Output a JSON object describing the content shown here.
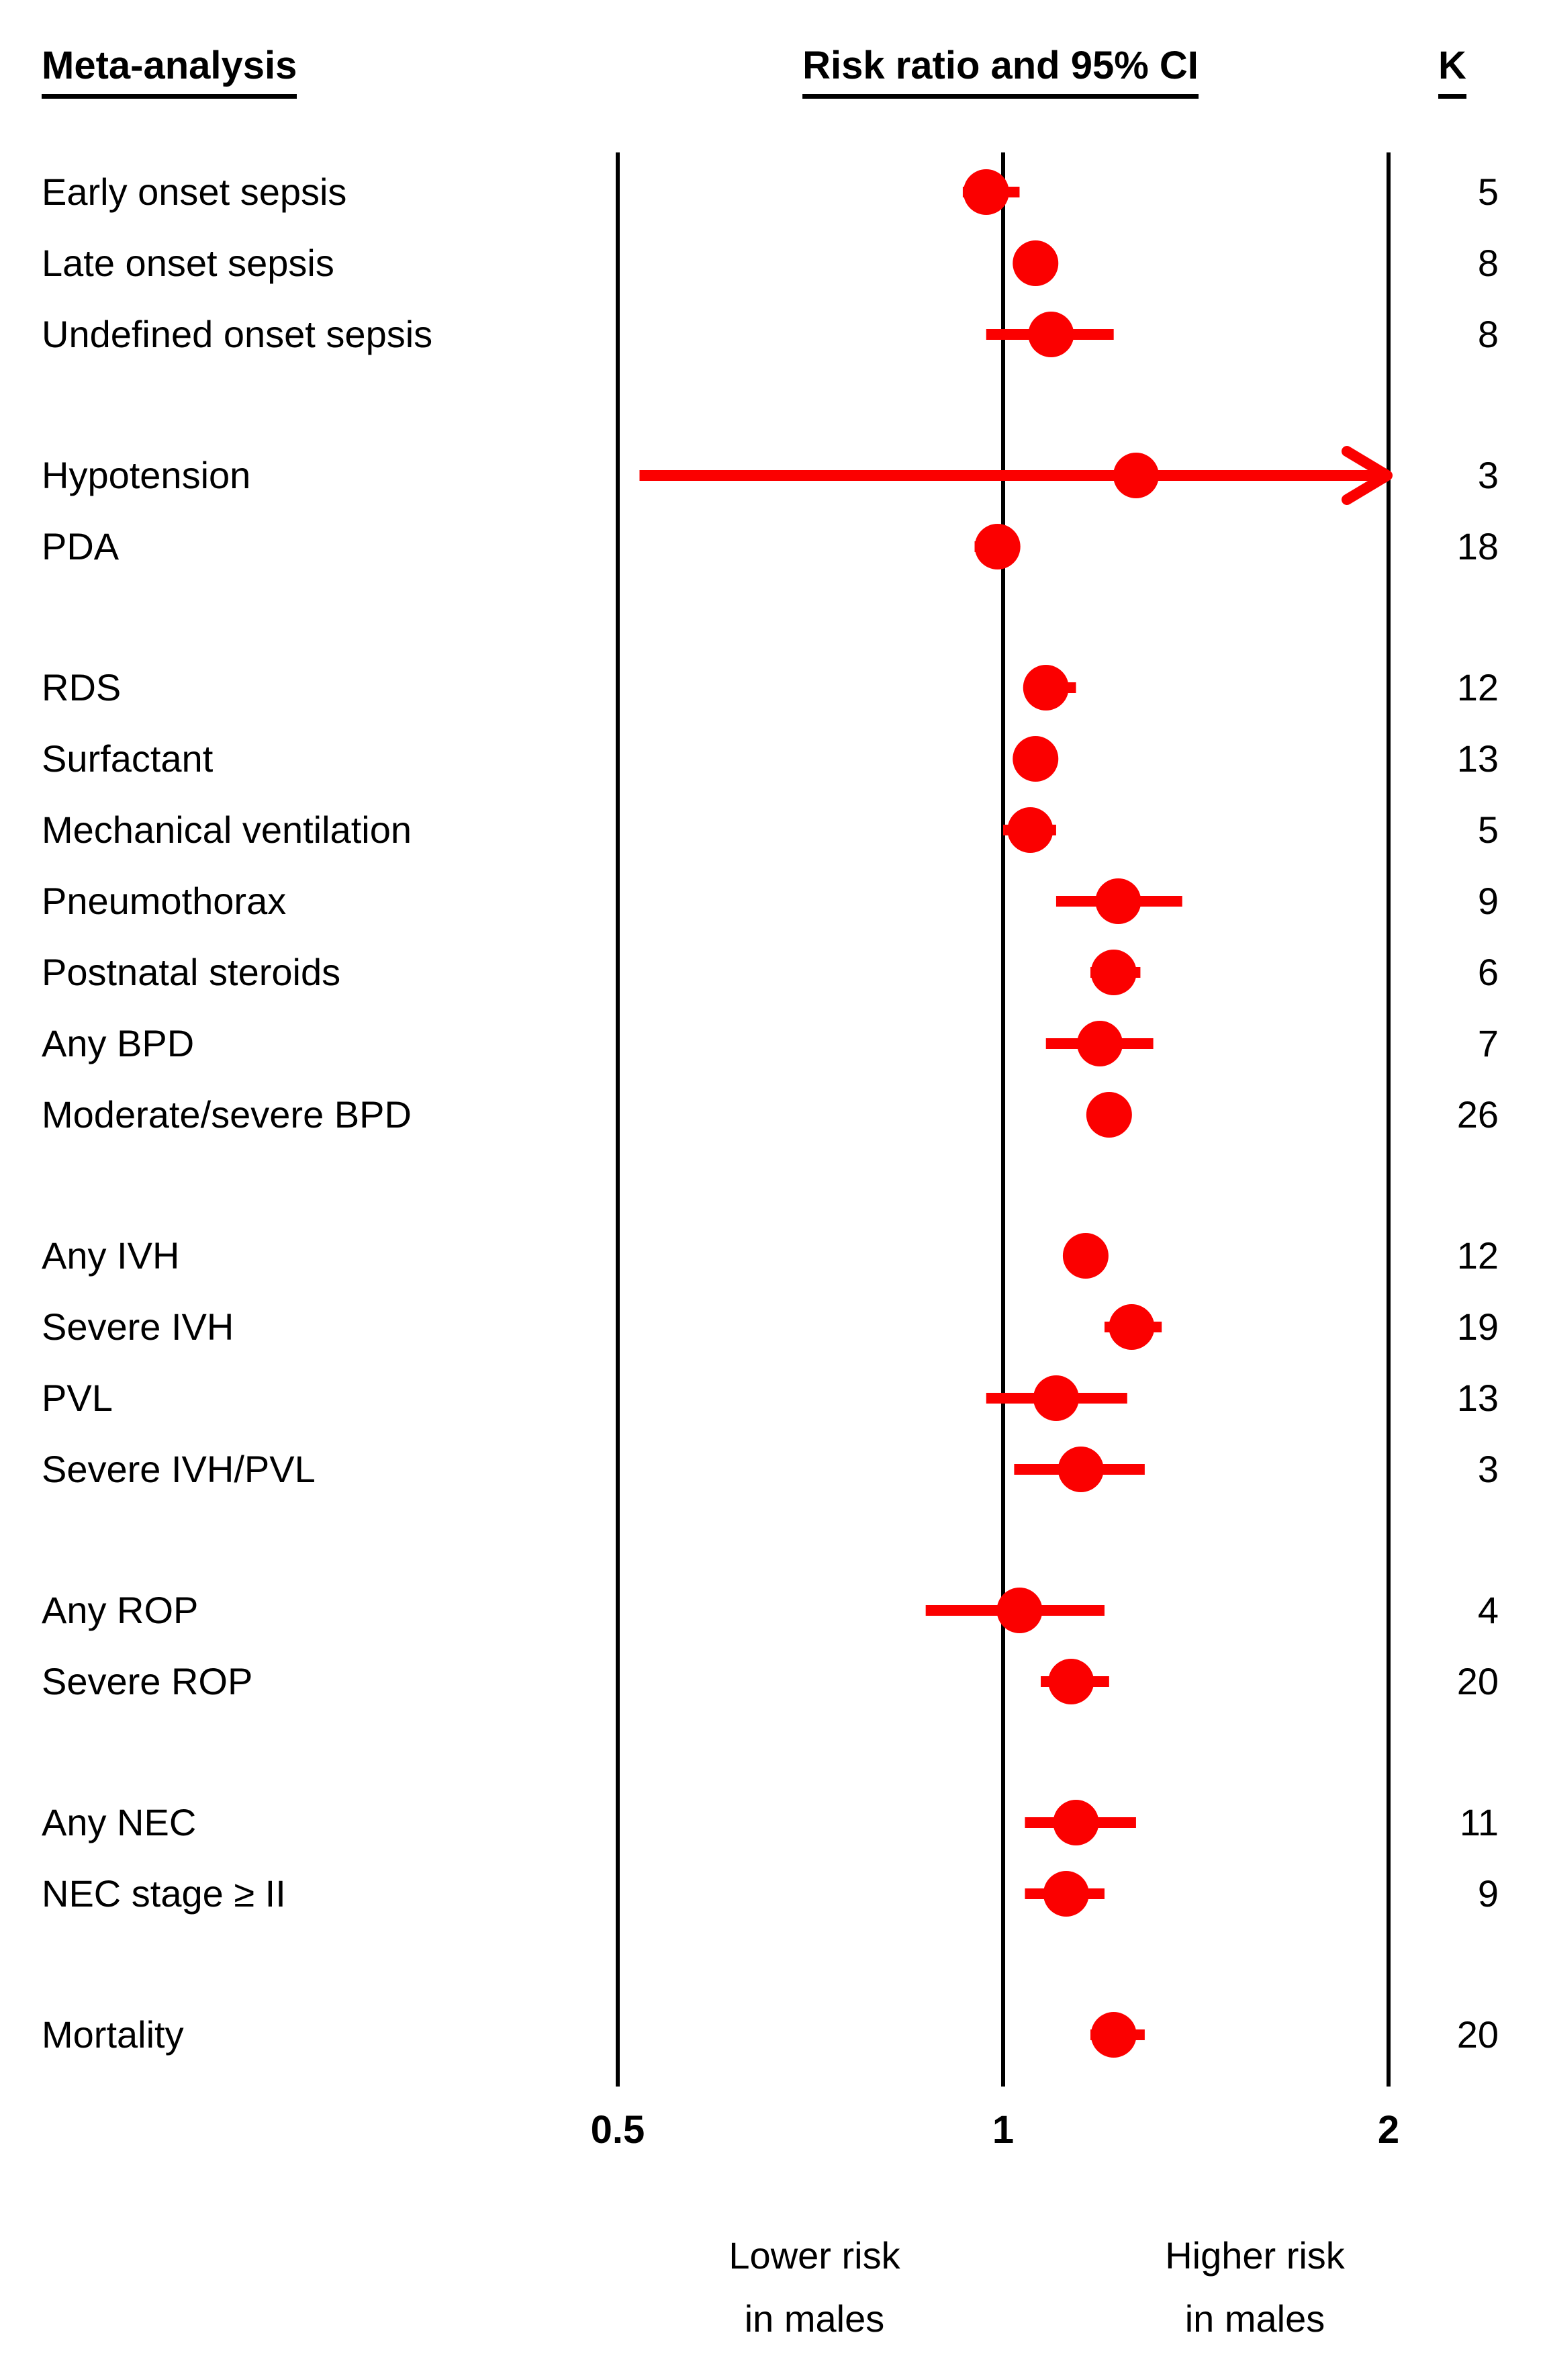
{
  "header": {
    "col_outcome": "Meta-analysis",
    "col_plot": "Risk ratio and 95% CI",
    "col_k": "K"
  },
  "axis": {
    "ticks": [
      "0.5",
      "1",
      "2"
    ],
    "tick_values": [
      0.5,
      1,
      2
    ],
    "scale": "log2"
  },
  "footer": {
    "lower": [
      "Lower risk",
      "in males"
    ],
    "higher": [
      "Higher risk",
      "in males"
    ]
  },
  "colors": {
    "marker": "#FB0000",
    "axis": "#000000",
    "text": "#000000"
  },
  "chart_data": {
    "type": "forest",
    "xlabel": "Risk ratio and 95% CI",
    "xlim": [
      0.5,
      2
    ],
    "x_scale": "log",
    "reference_line": 1,
    "groups": [
      {
        "rows": [
          {
            "label": "Early onset sepsis",
            "rr": 0.97,
            "ci_low": 0.93,
            "ci_high": 1.03,
            "k": 5
          },
          {
            "label": "Late onset sepsis",
            "rr": 1.06,
            "ci_low": 1.02,
            "ci_high": 1.1,
            "k": 8
          },
          {
            "label": "Undefined onset sepsis",
            "rr": 1.09,
            "ci_low": 0.97,
            "ci_high": 1.22,
            "k": 8
          }
        ]
      },
      {
        "rows": [
          {
            "label": "Hypotension",
            "rr": 1.27,
            "ci_low": 0.52,
            "ci_high": 2.0,
            "ci_high_arrow": true,
            "k": 3
          },
          {
            "label": "PDA",
            "rr": 0.99,
            "ci_low": 0.95,
            "ci_high": 1.02,
            "k": 18
          }
        ]
      },
      {
        "rows": [
          {
            "label": "RDS",
            "rr": 1.08,
            "ci_low": 1.04,
            "ci_high": 1.14,
            "k": 12
          },
          {
            "label": "Surfactant",
            "rr": 1.06,
            "ci_low": 1.02,
            "ci_high": 1.09,
            "k": 13
          },
          {
            "label": "Mechanical ventilation",
            "rr": 1.05,
            "ci_low": 1.0,
            "ci_high": 1.1,
            "k": 5
          },
          {
            "label": "Pneumothorax",
            "rr": 1.23,
            "ci_low": 1.1,
            "ci_high": 1.38,
            "k": 9
          },
          {
            "label": "Postnatal steroids",
            "rr": 1.22,
            "ci_low": 1.17,
            "ci_high": 1.28,
            "k": 6
          },
          {
            "label": "Any BPD",
            "rr": 1.19,
            "ci_low": 1.08,
            "ci_high": 1.31,
            "k": 7
          },
          {
            "label": "Moderate/severe BPD",
            "rr": 1.21,
            "ci_low": 1.17,
            "ci_high": 1.25,
            "k": 26
          }
        ]
      },
      {
        "rows": [
          {
            "label": "Any IVH",
            "rr": 1.16,
            "ci_low": 1.12,
            "ci_high": 1.2,
            "k": 12
          },
          {
            "label": "Severe IVH",
            "rr": 1.26,
            "ci_low": 1.2,
            "ci_high": 1.33,
            "k": 19
          },
          {
            "label": "PVL",
            "rr": 1.1,
            "ci_low": 0.97,
            "ci_high": 1.25,
            "k": 13
          },
          {
            "label": "Severe IVH/PVL",
            "rr": 1.15,
            "ci_low": 1.02,
            "ci_high": 1.29,
            "k": 3
          }
        ]
      },
      {
        "rows": [
          {
            "label": "Any ROP",
            "rr": 1.03,
            "ci_low": 0.87,
            "ci_high": 1.2,
            "k": 4
          },
          {
            "label": "Severe ROP",
            "rr": 1.13,
            "ci_low": 1.07,
            "ci_high": 1.21,
            "k": 20
          }
        ]
      },
      {
        "rows": [
          {
            "label": "Any NEC",
            "rr": 1.14,
            "ci_low": 1.04,
            "ci_high": 1.27,
            "k": 11
          },
          {
            "label": "NEC stage ≥ II",
            "rr": 1.12,
            "ci_low": 1.04,
            "ci_high": 1.2,
            "k": 9
          }
        ]
      },
      {
        "rows": [
          {
            "label": "Mortality",
            "rr": 1.22,
            "ci_low": 1.17,
            "ci_high": 1.29,
            "k": 20
          }
        ]
      }
    ]
  }
}
